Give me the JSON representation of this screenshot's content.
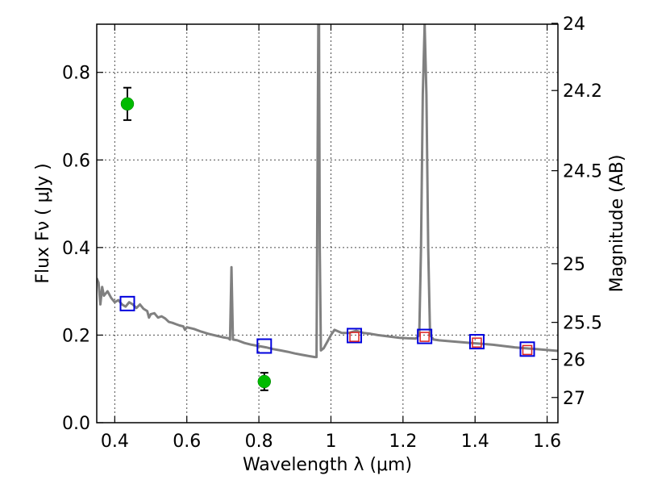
{
  "chart_data": {
    "type": "scatter",
    "xlabel": "Wavelength  λ (μm)",
    "ylabel": "Flux  Fν  ( μJy )",
    "y2label": "Magnitude (AB)",
    "xlim": [
      0.35,
      1.63
    ],
    "ylim": [
      0.0,
      0.91
    ],
    "x_ticks": [
      {
        "value": 0.4,
        "label": "0.4"
      },
      {
        "value": 0.6,
        "label": "0.6"
      },
      {
        "value": 0.8,
        "label": "0.8"
      },
      {
        "value": 1.0,
        "label": "1"
      },
      {
        "value": 1.2,
        "label": "1.2"
      },
      {
        "value": 1.4,
        "label": "1.4"
      },
      {
        "value": 1.6,
        "label": "1.6"
      }
    ],
    "y_ticks": [
      {
        "value": 0.0,
        "label": "0.0"
      },
      {
        "value": 0.2,
        "label": "0.2"
      },
      {
        "value": 0.4,
        "label": "0.4"
      },
      {
        "value": 0.6,
        "label": "0.6"
      },
      {
        "value": 0.8,
        "label": "0.8"
      }
    ],
    "mag_ticks": [
      {
        "value": 24,
        "label": "24"
      },
      {
        "value": 24.2,
        "label": "24.2"
      },
      {
        "value": 24.5,
        "label": "24.5"
      },
      {
        "value": 25,
        "label": "25"
      },
      {
        "value": 25.5,
        "label": "25.5"
      },
      {
        "value": 26,
        "label": "26"
      },
      {
        "value": 27,
        "label": "27"
      }
    ],
    "grid": true,
    "colors": {
      "model": "#808080",
      "observed": "#00bb00",
      "model_bands": "#0000dd",
      "fit_bands": "#dd2222"
    },
    "model_spectrum": [
      [
        0.35,
        0.33
      ],
      [
        0.355,
        0.32
      ],
      [
        0.36,
        0.27
      ],
      [
        0.365,
        0.31
      ],
      [
        0.37,
        0.29
      ],
      [
        0.38,
        0.3
      ],
      [
        0.39,
        0.285
      ],
      [
        0.4,
        0.275
      ],
      [
        0.41,
        0.28
      ],
      [
        0.42,
        0.27
      ],
      [
        0.43,
        0.265
      ],
      [
        0.44,
        0.275
      ],
      [
        0.45,
        0.27
      ],
      [
        0.46,
        0.262
      ],
      [
        0.47,
        0.27
      ],
      [
        0.48,
        0.26
      ],
      [
        0.49,
        0.255
      ],
      [
        0.495,
        0.24
      ],
      [
        0.5,
        0.248
      ],
      [
        0.51,
        0.25
      ],
      [
        0.52,
        0.24
      ],
      [
        0.53,
        0.243
      ],
      [
        0.54,
        0.238
      ],
      [
        0.55,
        0.23
      ],
      [
        0.56,
        0.228
      ],
      [
        0.57,
        0.225
      ],
      [
        0.58,
        0.222
      ],
      [
        0.59,
        0.22
      ],
      [
        0.595,
        0.212
      ],
      [
        0.6,
        0.218
      ],
      [
        0.62,
        0.214
      ],
      [
        0.64,
        0.208
      ],
      [
        0.66,
        0.203
      ],
      [
        0.68,
        0.199
      ],
      [
        0.7,
        0.195
      ],
      [
        0.715,
        0.193
      ],
      [
        0.72,
        0.19
      ],
      [
        0.724,
        0.355
      ],
      [
        0.728,
        0.19
      ],
      [
        0.74,
        0.188
      ],
      [
        0.76,
        0.182
      ],
      [
        0.78,
        0.178
      ],
      [
        0.8,
        0.175
      ],
      [
        0.82,
        0.172
      ],
      [
        0.84,
        0.168
      ],
      [
        0.86,
        0.165
      ],
      [
        0.88,
        0.162
      ],
      [
        0.9,
        0.158
      ],
      [
        0.92,
        0.155
      ],
      [
        0.94,
        0.152
      ],
      [
        0.955,
        0.15
      ],
      [
        0.96,
        0.15
      ],
      [
        0.963,
        0.6
      ],
      [
        0.965,
        0.91
      ],
      [
        0.967,
        0.91
      ],
      [
        0.969,
        0.4
      ],
      [
        0.972,
        0.165
      ],
      [
        0.98,
        0.17
      ],
      [
        0.99,
        0.185
      ],
      [
        1.0,
        0.2
      ],
      [
        1.01,
        0.212
      ],
      [
        1.03,
        0.205
      ],
      [
        1.05,
        0.205
      ],
      [
        1.07,
        0.21
      ],
      [
        1.09,
        0.205
      ],
      [
        1.11,
        0.203
      ],
      [
        1.13,
        0.2
      ],
      [
        1.15,
        0.198
      ],
      [
        1.17,
        0.196
      ],
      [
        1.19,
        0.194
      ],
      [
        1.21,
        0.193
      ],
      [
        1.235,
        0.192
      ],
      [
        1.245,
        0.2
      ],
      [
        1.25,
        0.4
      ],
      [
        1.255,
        0.75
      ],
      [
        1.26,
        0.91
      ],
      [
        1.265,
        0.75
      ],
      [
        1.27,
        0.4
      ],
      [
        1.275,
        0.2
      ],
      [
        1.285,
        0.19
      ],
      [
        1.3,
        0.188
      ],
      [
        1.33,
        0.186
      ],
      [
        1.36,
        0.184
      ],
      [
        1.39,
        0.182
      ],
      [
        1.42,
        0.18
      ],
      [
        1.45,
        0.178
      ],
      [
        1.48,
        0.175
      ],
      [
        1.51,
        0.172
      ],
      [
        1.54,
        0.17
      ],
      [
        1.57,
        0.168
      ],
      [
        1.6,
        0.166
      ],
      [
        1.63,
        0.164
      ]
    ],
    "observed_points": [
      {
        "x": 0.435,
        "y": 0.728,
        "err": 0.037
      },
      {
        "x": 0.815,
        "y": 0.094,
        "err": 0.02
      }
    ],
    "model_bands": [
      {
        "x": 0.435,
        "y": 0.272
      },
      {
        "x": 0.815,
        "y": 0.175
      },
      {
        "x": 1.065,
        "y": 0.199
      },
      {
        "x": 1.26,
        "y": 0.197
      },
      {
        "x": 1.405,
        "y": 0.185
      },
      {
        "x": 1.545,
        "y": 0.168
      }
    ],
    "fit_bands": [
      {
        "x": 1.065,
        "y": 0.196
      },
      {
        "x": 1.26,
        "y": 0.196
      },
      {
        "x": 1.405,
        "y": 0.183
      },
      {
        "x": 1.545,
        "y": 0.166
      }
    ]
  }
}
